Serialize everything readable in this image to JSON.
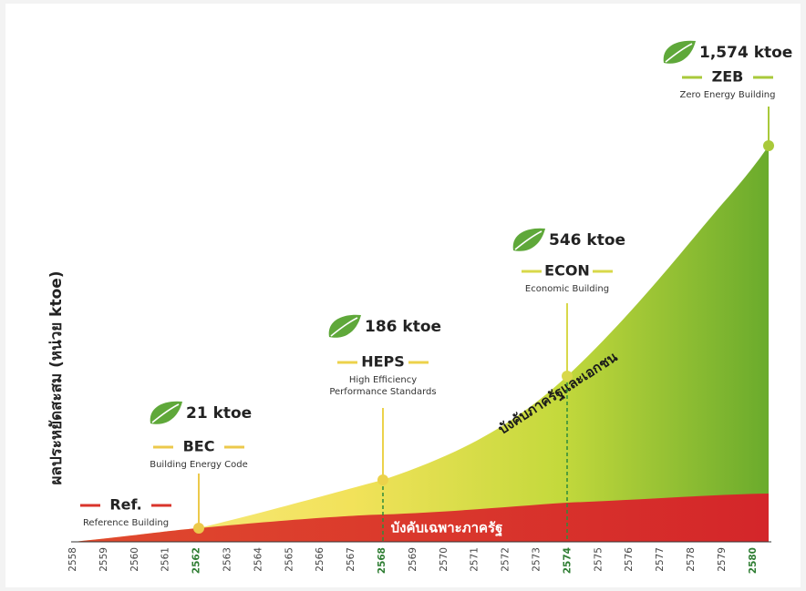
{
  "y_axis_label": "ผลประหยัดสะสม (หน่วย ktoe)",
  "years": [
    {
      "label": "2558",
      "highlight": false
    },
    {
      "label": "2559",
      "highlight": false
    },
    {
      "label": "2560",
      "highlight": false
    },
    {
      "label": "2561",
      "highlight": false
    },
    {
      "label": "2562",
      "highlight": true
    },
    {
      "label": "2563",
      "highlight": false
    },
    {
      "label": "2564",
      "highlight": false
    },
    {
      "label": "2565",
      "highlight": false
    },
    {
      "label": "2566",
      "highlight": false
    },
    {
      "label": "2567",
      "highlight": false
    },
    {
      "label": "2568",
      "highlight": true
    },
    {
      "label": "2569",
      "highlight": false
    },
    {
      "label": "2570",
      "highlight": false
    },
    {
      "label": "2571",
      "highlight": false
    },
    {
      "label": "2572",
      "highlight": false
    },
    {
      "label": "2573",
      "highlight": false
    },
    {
      "label": "2574",
      "highlight": true
    },
    {
      "label": "2575",
      "highlight": false
    },
    {
      "label": "2576",
      "highlight": false
    },
    {
      "label": "2577",
      "highlight": false
    },
    {
      "label": "2578",
      "highlight": false
    },
    {
      "label": "2579",
      "highlight": false
    },
    {
      "label": "2580",
      "highlight": true
    }
  ],
  "baseline": {
    "name": "Ref.",
    "description": [
      "Reference Building"
    ]
  },
  "milestones": [
    {
      "saving": "21 ktoe",
      "name": "BEC",
      "description": [
        "Building Energy Code"
      ]
    },
    {
      "saving": "186 ktoe",
      "name": "HEPS",
      "description": [
        "High Efficiency",
        "Performance Standards"
      ]
    },
    {
      "saving": "546 ktoe",
      "name": "ECON",
      "description": [
        "Economic Building"
      ]
    },
    {
      "saving": "1,574 ktoe",
      "name": "ZEB",
      "description": [
        "Zero Energy Building"
      ]
    }
  ],
  "area_labels": {
    "government_only": "บังคับเฉพาะภาครัฐ",
    "government_and_private": "บังคับภาครัฐและเอกชน"
  }
}
